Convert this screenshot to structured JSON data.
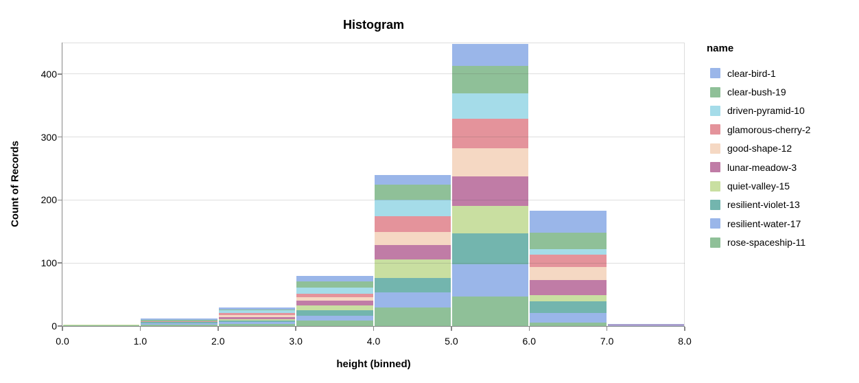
{
  "title": "Histogram",
  "axes": {
    "x": {
      "title": "height (binned)",
      "tick_labels": [
        "0.0",
        "1.0",
        "2.0",
        "3.0",
        "4.0",
        "5.0",
        "6.0",
        "7.0",
        "8.0"
      ],
      "domain": [
        0,
        8
      ]
    },
    "y": {
      "title": "Count of Records",
      "tick_labels": [
        "0",
        "100",
        "200",
        "300",
        "400"
      ],
      "tick_values": [
        0,
        100,
        200,
        300,
        400
      ],
      "domain": [
        0,
        450
      ]
    }
  },
  "legend": {
    "title": "name"
  },
  "chart_data": {
    "type": "bar",
    "subtype": "stacked-histogram",
    "title": "Histogram",
    "xlabel": "height (binned)",
    "ylabel": "Count of Records",
    "xlim": [
      0,
      8
    ],
    "ylim": [
      0,
      450
    ],
    "grid": "horizontal",
    "legend_position": "right",
    "bin_edges": [
      0,
      1,
      2,
      3,
      4,
      5,
      6,
      7,
      8
    ],
    "bin_totals": [
      2,
      12,
      29,
      80,
      240,
      448,
      183,
      3
    ],
    "stack_order": "first-series-on-top",
    "series": [
      {
        "name": "clear-bird-1",
        "color": "#9ab6e9",
        "values": [
          0,
          2,
          3,
          9,
          16,
          35,
          35,
          1
        ]
      },
      {
        "name": "clear-bush-19",
        "color": "#8fc098",
        "values": [
          0,
          2,
          1,
          10,
          24,
          44,
          26,
          0
        ]
      },
      {
        "name": "driven-pyramid-10",
        "color": "#a5dce9",
        "values": [
          0,
          0,
          4,
          10,
          26,
          40,
          9,
          0
        ]
      },
      {
        "name": "glamorous-cherry-2",
        "color": "#e4939b",
        "values": [
          0,
          2,
          4,
          5,
          25,
          47,
          19,
          0
        ]
      },
      {
        "name": "good-shape-12",
        "color": "#f5d8c3",
        "values": [
          0,
          0,
          3,
          6,
          21,
          45,
          21,
          0
        ]
      },
      {
        "name": "lunar-meadow-3",
        "color": "#c07ca6",
        "values": [
          0,
          0,
          3,
          7,
          22,
          46,
          24,
          1
        ]
      },
      {
        "name": "quiet-valley-15",
        "color": "#c9dfa1",
        "values": [
          1,
          0,
          2,
          8,
          30,
          44,
          10,
          0
        ]
      },
      {
        "name": "resilient-violet-13",
        "color": "#73b5ae",
        "values": [
          0,
          2,
          3,
          9,
          23,
          49,
          18,
          0
        ]
      },
      {
        "name": "resilient-water-17",
        "color": "#9ab6e9",
        "values": [
          0,
          2,
          3,
          7,
          24,
          51,
          16,
          1
        ]
      },
      {
        "name": "rose-spaceship-11",
        "color": "#8fc098",
        "values": [
          1,
          2,
          3,
          9,
          29,
          47,
          5,
          0
        ]
      }
    ]
  },
  "style_colors": {
    "axis_domain": "#878787",
    "view_border": "#dddddd",
    "background": "#ffffff"
  }
}
